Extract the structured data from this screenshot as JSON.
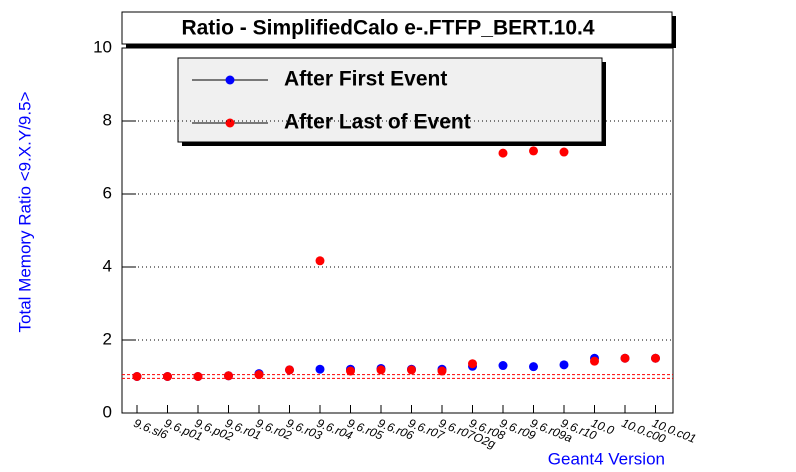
{
  "chart_data": {
    "type": "scatter",
    "title": "Ratio - SimplifiedCalo e-.FTFP_BERT.10.4",
    "ylabel": "Total Memory Ratio <9.X.Y/9.5>",
    "xlabel": "Geant4 Version",
    "categories": [
      "9.6.sl6",
      "9.6.p01",
      "9.6.p02",
      "9.6.r01",
      "9.6.r02",
      "9.6.r03",
      "9.6.r04",
      "9.6.r05",
      "9.6.r06",
      "9.6.r07",
      "9.6.r07O2g",
      "9.6.r08",
      "9.6.r09",
      "9.6.r09a",
      "9.6.r10",
      "10.0",
      "10.0.c00",
      "10.0.c01"
    ],
    "series": [
      {
        "name": "After First Event",
        "color": "#0000ff",
        "values": [
          1.0,
          1.0,
          1.0,
          1.02,
          1.08,
          1.18,
          1.2,
          1.2,
          1.22,
          1.2,
          1.2,
          1.28,
          1.3,
          1.27,
          1.32,
          1.5,
          1.5,
          1.5
        ]
      },
      {
        "name": "After Last of Event",
        "color": "#ff0000",
        "values": [
          1.0,
          1.0,
          1.0,
          1.02,
          1.05,
          1.18,
          4.17,
          1.15,
          1.18,
          1.18,
          1.15,
          1.35,
          7.12,
          7.18,
          7.15,
          1.42,
          1.5,
          1.5
        ]
      }
    ],
    "reference_lines": [
      0.95,
      1.05
    ],
    "reference_color": "#ff0000",
    "ylim": [
      0,
      10
    ],
    "yticks": [
      0,
      2,
      4,
      6,
      8,
      10
    ],
    "grid": true
  }
}
